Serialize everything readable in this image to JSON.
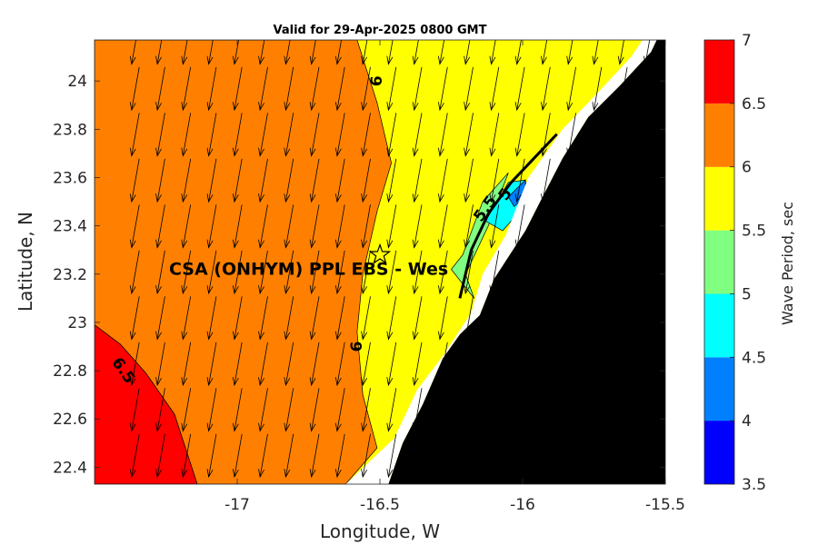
{
  "chart_data": {
    "type": "map",
    "title": "Valid for 29-Apr-2025 0800 GMT",
    "xlabel": "Longitude, W",
    "ylabel": "Latitude, N",
    "xlim": [
      -17.5,
      -15.5
    ],
    "ylim": [
      22.33,
      24.17
    ],
    "x_ticks": [
      -17,
      -16.5,
      -16,
      -15.5
    ],
    "x_tick_labels": [
      "-17",
      "-16.5",
      "-16",
      "-15.5"
    ],
    "y_ticks": [
      22.4,
      22.6,
      22.8,
      23,
      23.2,
      23.4,
      23.6,
      23.8,
      24
    ],
    "y_tick_labels": [
      "22.4",
      "22.6",
      "22.8",
      "23",
      "23.2",
      "23.4",
      "23.6",
      "23.8",
      "24"
    ],
    "colorbar": {
      "label": "Wave Period, sec",
      "range": [
        3.5,
        7
      ],
      "ticks": [
        "3.5",
        "4",
        "4.5",
        "5",
        "5.5",
        "6",
        "6.5",
        "7"
      ],
      "bands": [
        {
          "from": 3.5,
          "to": 4.0,
          "color": "#0000ff"
        },
        {
          "from": 4.0,
          "to": 4.5,
          "color": "#0080ff"
        },
        {
          "from": 4.5,
          "to": 5.0,
          "color": "#00ffff"
        },
        {
          "from": 5.0,
          "to": 5.5,
          "color": "#80ff80"
        },
        {
          "from": 5.5,
          "to": 6.0,
          "color": "#ffff00"
        },
        {
          "from": 6.0,
          "to": 6.5,
          "color": "#ff8000"
        },
        {
          "from": 6.5,
          "to": 7.0,
          "color": "#ff0000"
        }
      ]
    },
    "regions": {
      "red": [
        [
          -17.5,
          22.99
        ],
        [
          -17.41,
          22.91
        ],
        [
          -17.32,
          22.79
        ],
        [
          -17.22,
          22.62
        ],
        [
          -17.14,
          22.33
        ],
        [
          -17.5,
          22.33
        ]
      ],
      "orange": [
        [
          -17.5,
          24.17
        ],
        [
          -16.58,
          24.17
        ],
        [
          -16.51,
          23.91
        ],
        [
          -16.46,
          23.66
        ],
        [
          -16.51,
          23.46
        ],
        [
          -16.56,
          23.2
        ],
        [
          -16.58,
          22.96
        ],
        [
          -16.56,
          22.7
        ],
        [
          -16.51,
          22.48
        ],
        [
          -16.62,
          22.33
        ],
        [
          -17.14,
          22.33
        ],
        [
          -17.22,
          22.62
        ],
        [
          -17.32,
          22.79
        ],
        [
          -17.41,
          22.91
        ],
        [
          -17.5,
          22.99
        ]
      ],
      "green": [
        [
          -16.21,
          23.28
        ],
        [
          -16.14,
          23.5
        ],
        [
          -16.05,
          23.62
        ],
        [
          -16.12,
          23.4
        ],
        [
          -16.2,
          23.2
        ],
        [
          -16.17,
          23.1
        ],
        [
          -16.25,
          23.22
        ]
      ],
      "cyan": [
        [
          -16.13,
          23.42
        ],
        [
          -16.05,
          23.58
        ],
        [
          -15.99,
          23.59
        ],
        [
          -15.98,
          23.5
        ],
        [
          -16.07,
          23.38
        ]
      ],
      "azure": [
        [
          -16.05,
          23.52
        ],
        [
          -15.99,
          23.59
        ],
        [
          -15.99,
          23.52
        ],
        [
          -16.03,
          23.48
        ]
      ],
      "blue": [
        [
          -16.01,
          23.46
        ],
        [
          -15.98,
          23.52
        ],
        [
          -15.97,
          23.44
        ]
      ],
      "land": [
        [
          -15.5,
          24.17
        ],
        [
          -15.5,
          22.33
        ],
        [
          -16.47,
          22.33
        ],
        [
          -16.42,
          22.5
        ],
        [
          -16.35,
          22.66
        ],
        [
          -16.28,
          22.85
        ],
        [
          -16.22,
          22.95
        ],
        [
          -16.15,
          23.03
        ],
        [
          -16.1,
          23.18
        ],
        [
          -15.99,
          23.38
        ],
        [
          -15.93,
          23.52
        ],
        [
          -15.86,
          23.68
        ],
        [
          -15.77,
          23.85
        ],
        [
          -15.66,
          23.98
        ],
        [
          -15.55,
          24.12
        ],
        [
          -15.53,
          24.17
        ]
      ],
      "shore_white": [
        [
          -15.5,
          24.17
        ],
        [
          -15.53,
          24.17
        ],
        [
          -15.55,
          24.12
        ],
        [
          -15.66,
          23.98
        ],
        [
          -15.77,
          23.85
        ],
        [
          -15.86,
          23.68
        ],
        [
          -15.93,
          23.52
        ],
        [
          -15.99,
          23.38
        ],
        [
          -16.1,
          23.18
        ],
        [
          -16.15,
          23.03
        ],
        [
          -16.22,
          22.95
        ],
        [
          -16.28,
          22.85
        ],
        [
          -16.35,
          22.66
        ],
        [
          -16.42,
          22.5
        ],
        [
          -16.47,
          22.33
        ],
        [
          -16.62,
          22.33
        ],
        [
          -16.45,
          22.52
        ],
        [
          -16.37,
          22.72
        ],
        [
          -16.28,
          22.86
        ],
        [
          -16.18,
          23.04
        ],
        [
          -16.14,
          23.2
        ],
        [
          -16.06,
          23.36
        ],
        [
          -15.98,
          23.6
        ],
        [
          -15.86,
          23.8
        ],
        [
          -15.73,
          23.96
        ],
        [
          -15.62,
          24.1
        ],
        [
          -15.58,
          24.17
        ]
      ],
      "coast_line": [
        [
          -15.88,
          23.78
        ],
        [
          -15.96,
          23.68
        ],
        [
          -16.04,
          23.58
        ],
        [
          -16.12,
          23.45
        ],
        [
          -16.18,
          23.3
        ],
        [
          -16.22,
          23.1
        ]
      ]
    },
    "contour_labels": [
      {
        "text": "6",
        "lon": -16.51,
        "lat": 24.0,
        "angle": -90
      },
      {
        "text": "6",
        "lon": -16.58,
        "lat": 22.9,
        "angle": -90
      },
      {
        "text": "6.5",
        "lon": -17.4,
        "lat": 22.8,
        "angle": 55
      },
      {
        "text": "5.5",
        "lon": -16.13,
        "lat": 23.47,
        "angle": -55
      },
      {
        "text": "5",
        "lon": -16.06,
        "lat": 23.53,
        "angle": -55
      }
    ],
    "station": {
      "name": "CSA (ONHYM) PPL EBS  - Wes",
      "lon": -16.5,
      "lat": 23.28
    },
    "wave_direction_arrows": {
      "lon_start": -17.37,
      "lon_step": 0.09,
      "lat_start": 22.36,
      "lat_step": 0.19,
      "heading_deg": 190
    }
  }
}
